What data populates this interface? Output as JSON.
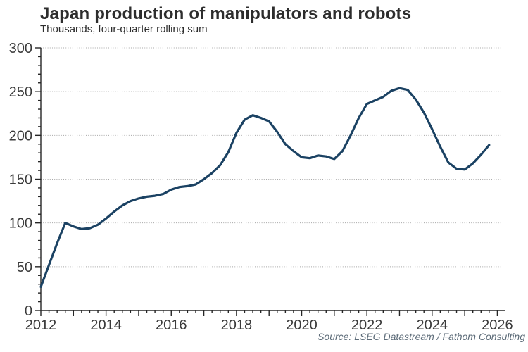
{
  "header": {
    "title": "Japan production of manipulators and robots",
    "subtitle": "Thousands, four-quarter rolling sum"
  },
  "footer": {
    "source": "Source: LSEG Datastream / Fathom Consulting"
  },
  "chart_data": {
    "type": "line",
    "title": "Japan production of manipulators and robots",
    "subtitle": "Thousands, four-quarter rolling sum",
    "source": "Source: LSEG Datastream / Fathom Consulting",
    "series_name": "Japan production of manipulators and robots (thousands, 4Q rolling sum)",
    "x": [
      2012,
      2012.25,
      2012.5,
      2012.75,
      2013,
      2013.25,
      2013.5,
      2013.75,
      2014,
      2014.25,
      2014.5,
      2014.75,
      2015,
      2015.25,
      2015.5,
      2015.75,
      2016,
      2016.25,
      2016.5,
      2016.75,
      2017,
      2017.25,
      2017.5,
      2017.75,
      2018,
      2018.25,
      2018.5,
      2018.75,
      2019,
      2019.25,
      2019.5,
      2019.75,
      2020,
      2020.25,
      2020.5,
      2020.75,
      2021,
      2021.25,
      2021.5,
      2021.75,
      2022,
      2022.25,
      2022.5,
      2022.75,
      2023,
      2023.25,
      2023.5,
      2023.75,
      2024,
      2024.25,
      2024.5,
      2024.75,
      2025,
      2025.25,
      2025.5,
      2025.75
    ],
    "values": [
      27,
      52,
      77,
      100,
      96,
      93,
      94,
      98,
      105,
      113,
      120,
      125,
      128,
      130,
      131,
      133,
      138,
      141,
      142,
      144,
      150,
      157,
      166,
      181,
      203,
      218,
      223,
      220,
      216,
      204,
      190,
      182,
      175,
      174,
      177,
      176,
      173,
      182,
      200,
      220,
      236,
      240,
      244,
      251,
      254,
      252,
      241,
      226,
      207,
      187,
      169,
      162,
      161,
      168,
      178,
      189
    ],
    "xlim": [
      2012,
      2026.25
    ],
    "ylim": [
      0,
      300
    ],
    "yticks": [
      0,
      50,
      100,
      150,
      200,
      250,
      300
    ],
    "ygrid": [
      50,
      100,
      150,
      200,
      250,
      300
    ],
    "xticks": [
      2012,
      2014,
      2016,
      2018,
      2020,
      2022,
      2024,
      2026
    ],
    "ytick_minor": 10,
    "ytick_major": 50,
    "xtick_minor": 0.25,
    "grid": "horizontal-dotted",
    "legend": "none",
    "colors": {
      "line": "#1b4263",
      "axis": "#262626",
      "grid": "#a8a8a8",
      "tick_text": "#3b3b3b",
      "title_text": "#2d2d2d",
      "source_text": "#5c6b78"
    }
  }
}
